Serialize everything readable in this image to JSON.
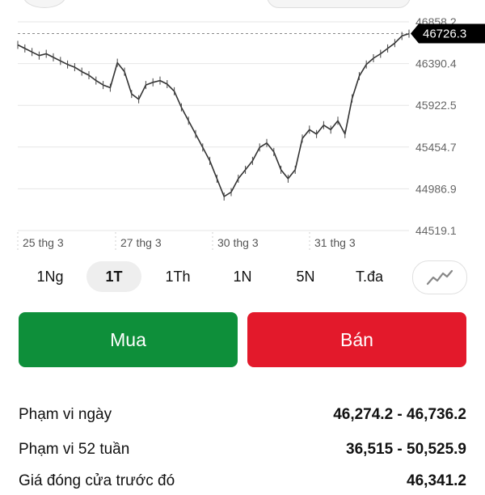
{
  "chart": {
    "y_labels": [
      "46858.2",
      "46390.4",
      "45922.5",
      "45454.7",
      "44986.9",
      "44519.1"
    ],
    "x_labels": [
      "25 thg 3",
      "27 thg 3",
      "30 thg 3",
      "31 thg 3"
    ],
    "current_price": "46726.3",
    "accent_color": "#000000"
  },
  "chart_data": {
    "type": "line",
    "xlabel": "",
    "ylabel": "",
    "ylim": [
      44519.1,
      46858.2
    ],
    "x_ticks": [
      "25 thg 3",
      "27 thg 3",
      "30 thg 3",
      "31 thg 3"
    ],
    "y_ticks": [
      46858.2,
      46390.4,
      45922.5,
      45454.7,
      44986.9,
      44519.1
    ],
    "current_value": 46726.3,
    "series": [
      {
        "values": [
          46600,
          46560,
          46520,
          46480,
          46500,
          46460,
          46420,
          46380,
          46350,
          46300,
          46260,
          46200,
          46150,
          46120,
          46400,
          46300,
          46050,
          45990,
          46150,
          46180,
          46200,
          46160,
          46080,
          45900,
          45750,
          45600,
          45450,
          45300,
          45100,
          44900,
          44950,
          45100,
          45200,
          45300,
          45450,
          45500,
          45400,
          45200,
          45100,
          45200,
          45550,
          45650,
          45600,
          45700,
          45650,
          45750,
          45600,
          46000,
          46250,
          46380,
          46450,
          46500,
          46560,
          46620,
          46700,
          46726
        ]
      }
    ],
    "reference_line": 46726.3,
    "grid": true
  },
  "periods": [
    "1Ng",
    "1T",
    "1Th",
    "1N",
    "5N",
    "T.đa"
  ],
  "active_period": "1T",
  "chart_type_icon": "line-chart-icon",
  "actions": {
    "buy_label": "Mua",
    "sell_label": "Bán",
    "buy_color": "#0e8f3a",
    "sell_color": "#e3192b"
  },
  "stats": [
    {
      "label": "Phạm vi ngày",
      "value": "46,274.2 - 46,736.2"
    },
    {
      "label": "Phạm vi 52 tuần",
      "value": "36,515 - 50,525.9"
    },
    {
      "label": "Giá đóng cửa trước đó",
      "value": "46,341.2"
    }
  ]
}
